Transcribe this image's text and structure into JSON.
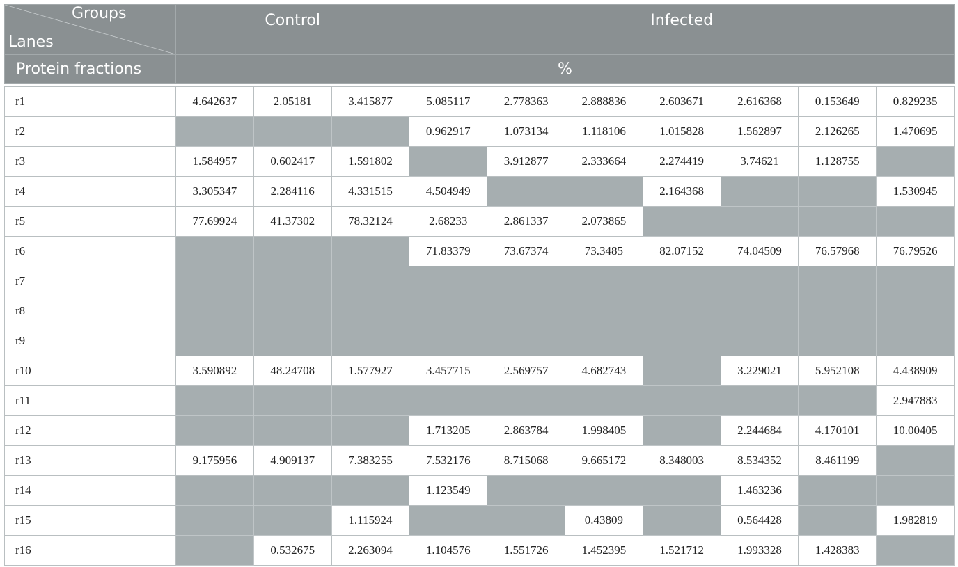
{
  "header": {
    "groups_label": "Groups",
    "lanes_label": "Lanes",
    "group_control": "Control",
    "group_infected": "Infected",
    "protein_fractions_label": "Protein fractions",
    "unit_label": "%"
  },
  "colors": {
    "header_bg": "#8a9092",
    "empty_cell_bg": "#a6aeb0"
  },
  "rows": [
    {
      "label": "r1",
      "values": [
        "4.642637",
        "2.05181",
        "3.415877",
        "5.085117",
        "2.778363",
        "2.888836",
        "2.603671",
        "2.616368",
        "0.153649",
        "0.829235"
      ]
    },
    {
      "label": "r2",
      "values": [
        "",
        "",
        "",
        "0.962917",
        "1.073134",
        "1.118106",
        "1.015828",
        "1.562897",
        "2.126265",
        "1.470695"
      ]
    },
    {
      "label": "r3",
      "values": [
        "1.584957",
        "0.602417",
        "1.591802",
        "",
        "3.912877",
        "2.333664",
        "2.274419",
        "3.74621",
        "1.128755",
        ""
      ]
    },
    {
      "label": "r4",
      "values": [
        "3.305347",
        "2.284116",
        "4.331515",
        "4.504949",
        "",
        "",
        "2.164368",
        "",
        "",
        "1.530945"
      ]
    },
    {
      "label": "r5",
      "values": [
        "77.69924",
        "41.37302",
        "78.32124",
        "2.68233",
        "2.861337",
        "2.073865",
        "",
        "",
        "",
        ""
      ]
    },
    {
      "label": "r6",
      "values": [
        "",
        "",
        "",
        "71.83379",
        "73.67374",
        "73.3485",
        "82.07152",
        "74.04509",
        "76.57968",
        "76.79526"
      ]
    },
    {
      "label": "r7",
      "values": [
        "",
        "",
        "",
        "",
        "",
        "",
        "",
        "",
        "",
        ""
      ]
    },
    {
      "label": "r8",
      "values": [
        "",
        "",
        "",
        "",
        "",
        "",
        "",
        "",
        "",
        ""
      ]
    },
    {
      "label": "r9",
      "values": [
        "",
        "",
        "",
        "",
        "",
        "",
        "",
        "",
        "",
        ""
      ]
    },
    {
      "label": "r10",
      "values": [
        "3.590892",
        "48.24708",
        "1.577927",
        "3.457715",
        "2.569757",
        "4.682743",
        "",
        "3.229021",
        "5.952108",
        "4.438909"
      ]
    },
    {
      "label": "r11",
      "values": [
        "",
        "",
        "",
        "",
        "",
        "",
        "",
        "",
        "",
        "2.947883"
      ]
    },
    {
      "label": "r12",
      "values": [
        "",
        "",
        "",
        "1.713205",
        "2.863784",
        "1.998405",
        "",
        "2.244684",
        "4.170101",
        "10.00405"
      ]
    },
    {
      "label": "r13",
      "values": [
        "9.175956",
        "4.909137",
        "7.383255",
        "7.532176",
        "8.715068",
        "9.665172",
        "8.348003",
        "8.534352",
        "8.461199",
        ""
      ]
    },
    {
      "label": "r14",
      "values": [
        "",
        "",
        "",
        "1.123549",
        "",
        "",
        "",
        "1.463236",
        "",
        ""
      ]
    },
    {
      "label": "r15",
      "values": [
        "",
        "",
        "1.115924",
        "",
        "",
        "0.43809",
        "",
        "0.564428",
        "",
        "1.982819"
      ]
    },
    {
      "label": "r16",
      "values": [
        "",
        "0.532675",
        "2.263094",
        "1.104576",
        "1.551726",
        "1.452395",
        "1.521712",
        "1.993328",
        "1.428383",
        ""
      ]
    }
  ]
}
